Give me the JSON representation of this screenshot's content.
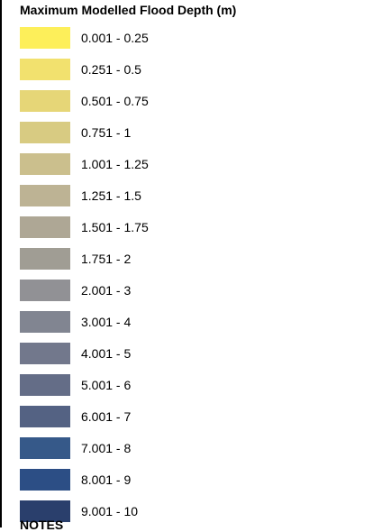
{
  "legend": {
    "title": "Maximum Modelled Flood Depth (m)",
    "items": [
      {
        "label": "0.001 - 0.25",
        "color": "#fdef5a"
      },
      {
        "label": "0.251 - 0.5",
        "color": "#f2e16e"
      },
      {
        "label": "0.501 - 0.75",
        "color": "#e6d677"
      },
      {
        "label": "0.751 - 1",
        "color": "#d8cb82"
      },
      {
        "label": "1.001 - 1.25",
        "color": "#cbbf8d"
      },
      {
        "label": "1.251 - 1.5",
        "color": "#bdb394"
      },
      {
        "label": "1.501 - 1.75",
        "color": "#aea795"
      },
      {
        "label": "1.751 - 2",
        "color": "#a09d94"
      },
      {
        "label": "2.001 - 3",
        "color": "#919195"
      },
      {
        "label": "3.001 - 4",
        "color": "#818591"
      },
      {
        "label": "4.001 - 5",
        "color": "#72788c"
      },
      {
        "label": "5.001 - 6",
        "color": "#646d87"
      },
      {
        "label": "6.001 - 7",
        "color": "#546283"
      },
      {
        "label": "7.001 - 8",
        "color": "#365989"
      },
      {
        "label": "8.001 - 9",
        "color": "#2c4e85"
      },
      {
        "label": "9.001 - 10",
        "color": "#2a3f6c"
      }
    ]
  },
  "notes": {
    "heading": "NOTES"
  }
}
